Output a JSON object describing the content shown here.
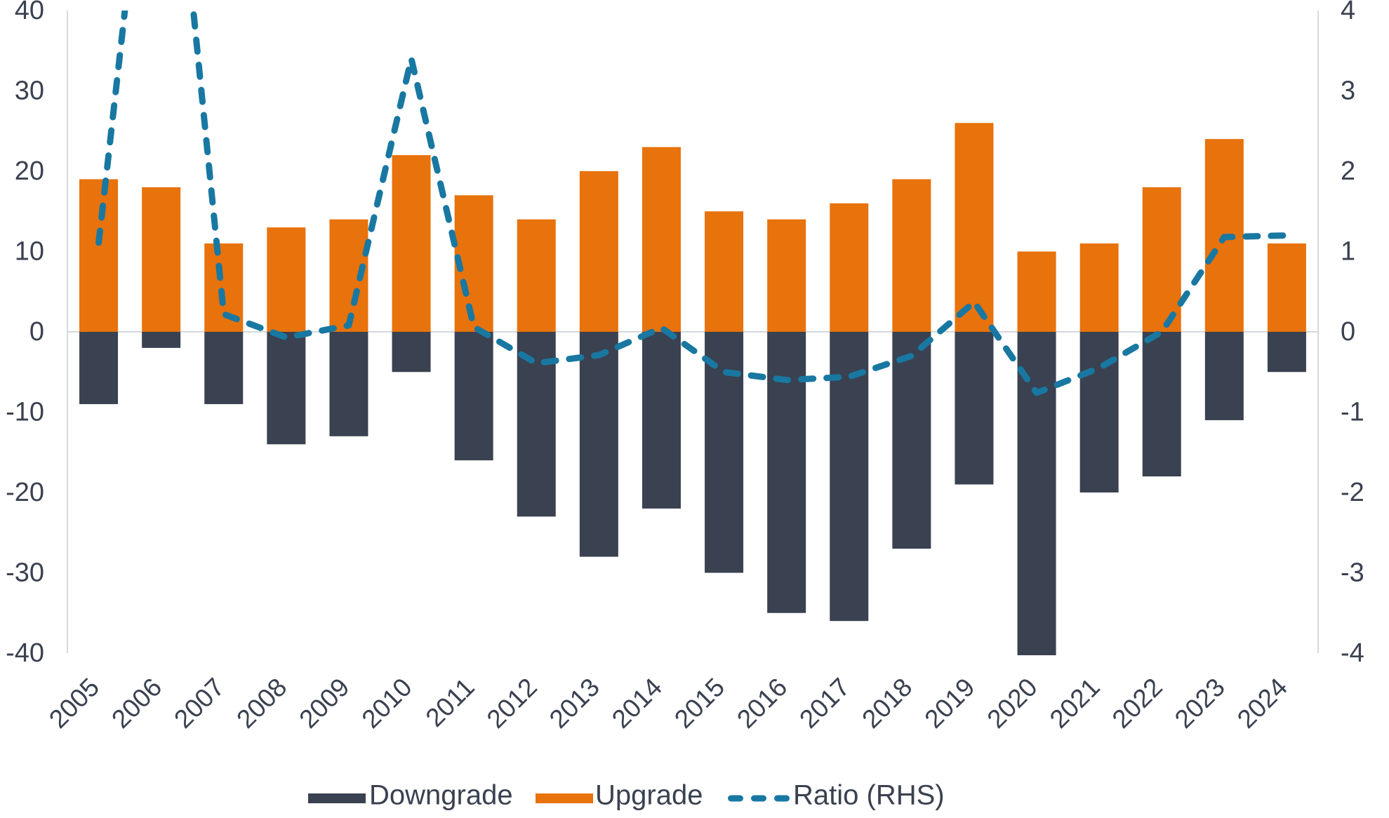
{
  "chart_data": {
    "type": "combo",
    "categories": [
      "2005",
      "2006",
      "2007",
      "2008",
      "2009",
      "2010",
      "2011",
      "2012",
      "2013",
      "2014",
      "2015",
      "2016",
      "2017",
      "2018",
      "2019",
      "2020",
      "2021",
      "2022",
      "2023",
      "2024"
    ],
    "series": [
      {
        "name": "Downgrade",
        "type": "bar",
        "axis": "left",
        "color": "#3A4150",
        "values": [
          -9,
          -2,
          -9,
          -14,
          -13,
          -5,
          -16,
          -23,
          -28,
          -22,
          -30,
          -35,
          -36,
          -27,
          -19,
          -41,
          -20,
          -18,
          -11,
          -5
        ]
      },
      {
        "name": "Upgrade",
        "type": "bar",
        "axis": "left",
        "color": "#E8720C",
        "values": [
          19,
          18,
          11,
          13,
          14,
          22,
          17,
          14,
          20,
          23,
          15,
          14,
          16,
          19,
          26,
          10,
          11,
          18,
          24,
          11
        ]
      },
      {
        "name": "Ratio (RHS)",
        "type": "line",
        "axis": "right",
        "style": "dashed",
        "color": "#1878A2",
        "values": [
          1.11,
          8.0,
          0.22,
          -0.07,
          0.08,
          3.4,
          0.06,
          -0.39,
          -0.29,
          0.05,
          -0.5,
          -0.6,
          -0.56,
          -0.3,
          0.37,
          -0.76,
          -0.45,
          0.0,
          1.18,
          1.2
        ]
      }
    ],
    "left_axis": {
      "ticks": [
        40,
        30,
        20,
        10,
        0,
        -10,
        -20,
        -30,
        -40
      ],
      "min": -40,
      "max": 40
    },
    "right_axis": {
      "ticks": [
        4,
        3,
        2,
        1,
        0,
        -1,
        -2,
        -3,
        -4
      ],
      "min": -4,
      "max": 4
    },
    "legend": {
      "items": [
        {
          "label": "Downgrade",
          "swatch": "bar",
          "color": "#3A4150"
        },
        {
          "label": "Upgrade",
          "swatch": "bar",
          "color": "#E8720C"
        },
        {
          "label": "Ratio (RHS)",
          "swatch": "dashed-line",
          "color": "#1878A2"
        }
      ],
      "position": "bottom"
    },
    "grid": "zero-line-only",
    "axis_line_color": "#D5D8DC",
    "label_color": "#3A4150",
    "title": "",
    "xlabel": "",
    "ylabel": ""
  }
}
